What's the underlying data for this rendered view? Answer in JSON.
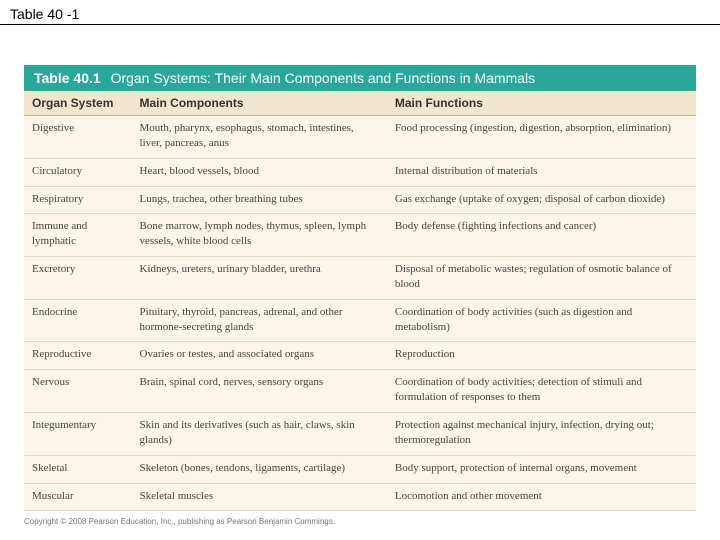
{
  "slide_title": "Table 40 -1",
  "banner": {
    "number": "Table 40.1",
    "title": "Organ Systems: Their Main Components and Functions in Mammals"
  },
  "columns": [
    "Organ System",
    "Main Components",
    "Main Functions"
  ],
  "rows": [
    {
      "c0": "Digestive",
      "c1": "Mouth, pharynx, esophagus, stomach, intestines, liver, pancreas, anus",
      "c2": "Food processing (ingestion, digestion, absorption, elimination)"
    },
    {
      "c0": "Circulatory",
      "c1": "Heart, blood vessels, blood",
      "c2": "Internal distribution of materials"
    },
    {
      "c0": "Respiratory",
      "c1": "Lungs, trachea, other breathing tubes",
      "c2": "Gas exchange (uptake of oxygen; disposal of carbon dioxide)"
    },
    {
      "c0": "Immune and lymphatic",
      "c1": "Bone marrow, lymph nodes, thymus, spleen, lymph vessels, white blood cells",
      "c2": "Body defense (fighting infections and cancer)"
    },
    {
      "c0": "Excretory",
      "c1": "Kidneys, ureters, urinary bladder, urethra",
      "c2": "Disposal of metabolic wastes; regulation of osmotic balance of blood"
    },
    {
      "c0": "Endocrine",
      "c1": "Pituitary, thyroid, pancreas, adrenal, and other hormone-secreting glands",
      "c2": "Coordination of body activities (such as digestion and metabolism)"
    },
    {
      "c0": "Reproductive",
      "c1": "Ovaries or testes, and associated organs",
      "c2": "Reproduction"
    },
    {
      "c0": "Nervous",
      "c1": "Brain, spinal cord, nerves, sensory organs",
      "c2": "Coordination of body activities; detection of stimuli and formulation of responses to them"
    },
    {
      "c0": "Integumentary",
      "c1": "Skin and its derivatives (such as hair, claws, skin glands)",
      "c2": "Protection against mechanical injury, infection, drying out; thermoregulation"
    },
    {
      "c0": "Skeletal",
      "c1": "Skeleton (bones, tendons, ligaments, cartilage)",
      "c2": "Body support, protection of internal organs, movement"
    },
    {
      "c0": "Muscular",
      "c1": "Skeletal muscles",
      "c2": "Locomotion and other movement"
    }
  ],
  "copyright": "Copyright © 2008 Pearson Education, Inc., publishing as Pearson Benjamin Cummings."
}
